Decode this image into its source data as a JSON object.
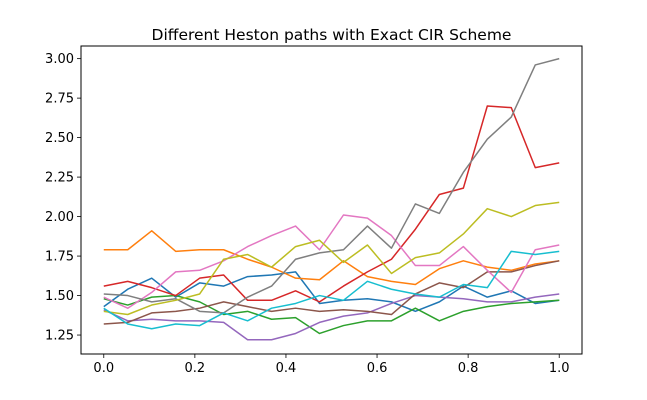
{
  "chart_data": {
    "type": "line",
    "title": "Different Heston paths with Exact CIR Scheme",
    "xlabel": "",
    "ylabel": "",
    "xlim": [
      -0.05,
      1.05
    ],
    "ylim": [
      1.13,
      3.08
    ],
    "grid": false,
    "x_ticks": [
      0.0,
      0.2,
      0.4,
      0.6,
      0.8,
      1.0
    ],
    "x_tick_labels": [
      "0.0",
      "0.2",
      "0.4",
      "0.6",
      "0.8",
      "1.0"
    ],
    "y_ticks": [
      1.25,
      1.5,
      1.75,
      2.0,
      2.25,
      2.5,
      2.75,
      3.0
    ],
    "y_tick_labels": [
      "1.25",
      "1.50",
      "1.75",
      "2.00",
      "2.25",
      "2.50",
      "2.75",
      "3.00"
    ],
    "x": [
      0.0,
      0.0526,
      0.1053,
      0.1579,
      0.2105,
      0.2632,
      0.3158,
      0.3684,
      0.4211,
      0.4737,
      0.5263,
      0.5789,
      0.6316,
      0.6842,
      0.7368,
      0.7895,
      0.8421,
      0.8947,
      0.9474,
      1.0
    ],
    "series": [
      {
        "color": "#1f77b4",
        "values": [
          1.43,
          1.54,
          1.61,
          1.49,
          1.58,
          1.56,
          1.62,
          1.63,
          1.65,
          1.45,
          1.47,
          1.48,
          1.46,
          1.4,
          1.46,
          1.56,
          1.49,
          1.53,
          1.45,
          1.47
        ]
      },
      {
        "color": "#ff7f0e",
        "values": [
          1.79,
          1.79,
          1.91,
          1.78,
          1.79,
          1.79,
          1.73,
          1.68,
          1.61,
          1.6,
          1.72,
          1.62,
          1.59,
          1.57,
          1.67,
          1.72,
          1.68,
          1.66,
          1.7,
          1.72
        ]
      },
      {
        "color": "#2ca02c",
        "values": [
          1.48,
          1.44,
          1.49,
          1.5,
          1.46,
          1.38,
          1.4,
          1.35,
          1.36,
          1.26,
          1.31,
          1.34,
          1.34,
          1.42,
          1.34,
          1.4,
          1.43,
          1.45,
          1.46,
          1.47
        ]
      },
      {
        "color": "#d62728",
        "values": [
          1.56,
          1.59,
          1.55,
          1.5,
          1.61,
          1.63,
          1.47,
          1.47,
          1.53,
          1.46,
          1.56,
          1.65,
          1.73,
          1.92,
          2.14,
          2.18,
          2.7,
          2.69,
          2.31,
          2.34
        ]
      },
      {
        "color": "#9467bd",
        "values": [
          1.41,
          1.34,
          1.35,
          1.34,
          1.34,
          1.33,
          1.22,
          1.22,
          1.26,
          1.33,
          1.37,
          1.39,
          1.45,
          1.5,
          1.49,
          1.48,
          1.46,
          1.46,
          1.49,
          1.51
        ]
      },
      {
        "color": "#8c564b",
        "values": [
          1.32,
          1.33,
          1.39,
          1.4,
          1.42,
          1.46,
          1.43,
          1.4,
          1.42,
          1.4,
          1.41,
          1.4,
          1.38,
          1.51,
          1.58,
          1.55,
          1.65,
          1.65,
          1.69,
          1.72
        ]
      },
      {
        "color": "#e377c2",
        "values": [
          1.49,
          1.42,
          1.52,
          1.65,
          1.66,
          1.72,
          1.81,
          1.88,
          1.94,
          1.79,
          2.01,
          1.99,
          1.88,
          1.69,
          1.69,
          1.81,
          1.66,
          1.52,
          1.79,
          1.82
        ]
      },
      {
        "color": "#7f7f7f",
        "values": [
          1.51,
          1.5,
          1.46,
          1.48,
          1.4,
          1.39,
          1.49,
          1.56,
          1.73,
          1.77,
          1.79,
          1.94,
          1.8,
          2.08,
          2.02,
          2.28,
          2.49,
          2.63,
          2.96,
          3.0
        ]
      },
      {
        "color": "#bcbd22",
        "values": [
          1.4,
          1.38,
          1.44,
          1.47,
          1.51,
          1.73,
          1.76,
          1.68,
          1.81,
          1.85,
          1.71,
          1.82,
          1.64,
          1.74,
          1.77,
          1.89,
          2.05,
          2.0,
          2.07,
          2.09
        ]
      },
      {
        "color": "#17becf",
        "values": [
          1.42,
          1.32,
          1.29,
          1.32,
          1.31,
          1.39,
          1.34,
          1.42,
          1.45,
          1.5,
          1.47,
          1.59,
          1.54,
          1.51,
          1.49,
          1.57,
          1.55,
          1.78,
          1.76,
          1.78
        ]
      }
    ]
  }
}
